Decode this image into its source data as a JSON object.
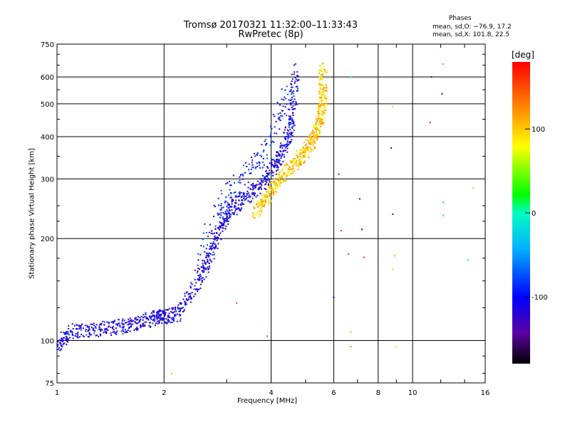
{
  "chart_data": {
    "type": "scatter",
    "title": "Tromsø 20170321 11:32:00–11:33:43",
    "subtitle": "RwPretec (8p)",
    "xlabel": "Frequency [MHz]",
    "ylabel": "Stationary phase Virtual Height [km]",
    "x_scale": "log",
    "y_scale": "log",
    "xlim": [
      1,
      16
    ],
    "ylim": [
      75,
      750
    ],
    "x_ticks": [
      1,
      2,
      4,
      6,
      8,
      10,
      16
    ],
    "x_tick_labels": [
      "1",
      "2",
      "4",
      "6",
      "8",
      "10",
      "16"
    ],
    "y_ticks": [
      75,
      100,
      200,
      300,
      400,
      500,
      600,
      750
    ],
    "y_tick_labels": [
      "75",
      "100",
      "200",
      "300",
      "400",
      "500",
      "600",
      "750"
    ],
    "grid": true,
    "colorbar": {
      "label": "[deg]",
      "range": [
        -180,
        180
      ],
      "ticks": [
        100,
        0,
        -100
      ],
      "tick_labels": [
        "100",
        "0",
        "-100"
      ]
    },
    "phase_stats": {
      "heading": "Phases",
      "o_line": "mean, sd,O: −76.9, 17.2",
      "x_line": "mean, sd,X: 101.8, 22.5"
    },
    "o_mode_trace": [
      [
        1.0,
        96
      ],
      [
        1.1,
        107
      ],
      [
        1.3,
        108
      ],
      [
        1.5,
        110
      ],
      [
        1.7,
        113
      ],
      [
        1.9,
        117
      ],
      [
        2.0,
        118
      ],
      [
        2.2,
        120
      ],
      [
        2.5,
        150
      ],
      [
        2.7,
        180
      ],
      [
        2.9,
        220
      ],
      [
        3.1,
        245
      ],
      [
        3.4,
        265
      ],
      [
        3.8,
        290
      ],
      [
        4.1,
        330
      ],
      [
        4.4,
        380
      ],
      [
        4.6,
        450
      ],
      [
        4.7,
        640
      ]
    ],
    "x_mode_trace": [
      [
        3.6,
        240
      ],
      [
        3.9,
        268
      ],
      [
        4.2,
        295
      ],
      [
        4.6,
        330
      ],
      [
        5.0,
        360
      ],
      [
        5.3,
        400
      ],
      [
        5.5,
        450
      ],
      [
        5.6,
        520
      ],
      [
        5.6,
        640
      ]
    ],
    "sporadic_points": [
      {
        "x": 6.7,
        "y": 600,
        "phase": 10
      },
      {
        "x": 8.8,
        "y": 490,
        "phase": 60
      },
      {
        "x": 11.3,
        "y": 600,
        "phase": -120
      },
      {
        "x": 12.2,
        "y": 655,
        "phase": 130
      },
      {
        "x": 12.1,
        "y": 535,
        "phase": -110
      },
      {
        "x": 11.2,
        "y": 440,
        "phase": 170
      },
      {
        "x": 8.7,
        "y": 370,
        "phase": -150
      },
      {
        "x": 6.2,
        "y": 310,
        "phase": -80
      },
      {
        "x": 14.8,
        "y": 282,
        "phase": 110
      },
      {
        "x": 7.1,
        "y": 262,
        "phase": -130
      },
      {
        "x": 12.2,
        "y": 256,
        "phase": 20
      },
      {
        "x": 8.8,
        "y": 236,
        "phase": -150
      },
      {
        "x": 12.2,
        "y": 234,
        "phase": 20
      },
      {
        "x": 6.3,
        "y": 211,
        "phase": 160
      },
      {
        "x": 7.2,
        "y": 213,
        "phase": -100
      },
      {
        "x": 6.6,
        "y": 180,
        "phase": 160
      },
      {
        "x": 7.3,
        "y": 176,
        "phase": 160
      },
      {
        "x": 8.9,
        "y": 178,
        "phase": 110
      },
      {
        "x": 8.8,
        "y": 162,
        "phase": 60
      },
      {
        "x": 14.3,
        "y": 173,
        "phase": 20
      },
      {
        "x": 6.0,
        "y": 134,
        "phase": -110
      },
      {
        "x": 6.7,
        "y": 106,
        "phase": 110
      },
      {
        "x": 6.7,
        "y": 96,
        "phase": 130
      },
      {
        "x": 9.0,
        "y": 96,
        "phase": 60
      },
      {
        "x": 3.9,
        "y": 103,
        "phase": 150
      },
      {
        "x": 3.2,
        "y": 129,
        "phase": 150
      },
      {
        "x": 2.1,
        "y": 80,
        "phase": 110
      }
    ]
  }
}
